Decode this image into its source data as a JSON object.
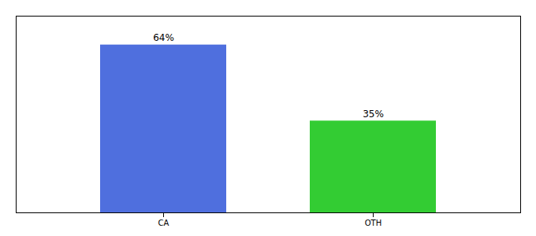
{
  "chart_data": {
    "type": "bar",
    "categories": [
      "CA",
      "OTH"
    ],
    "values": [
      64,
      35
    ],
    "value_labels": [
      "64%",
      "35%"
    ],
    "colors": [
      "#4f6fde",
      "#33cc33"
    ],
    "ylim": [
      0,
      75
    ],
    "data_labels": true,
    "tick_labels": "x"
  }
}
